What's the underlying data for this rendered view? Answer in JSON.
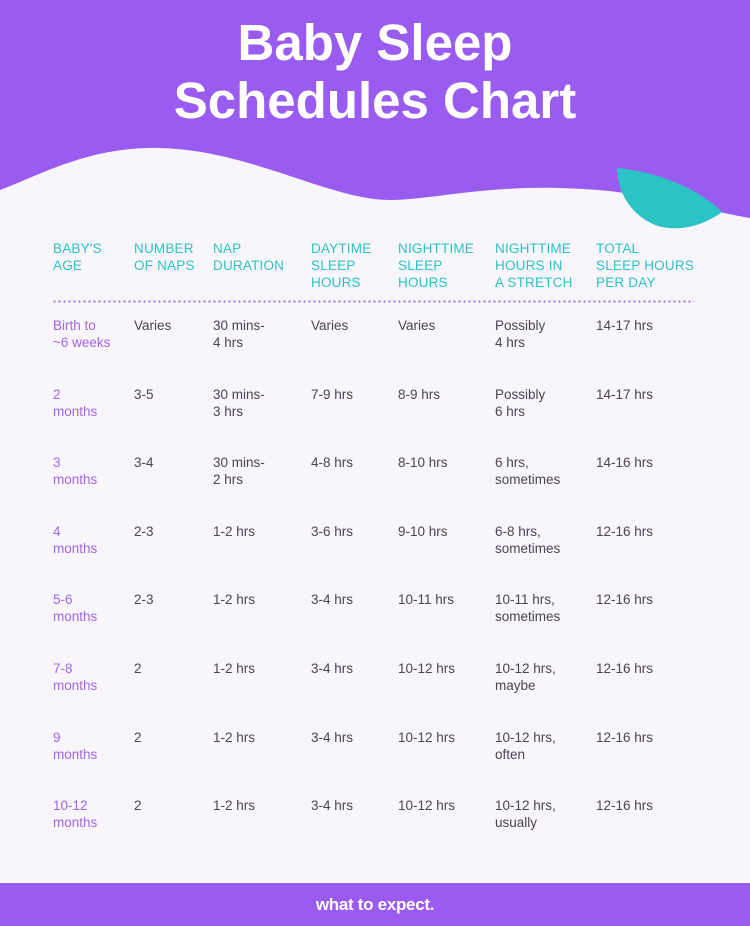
{
  "colors": {
    "purple": "#9A5CF0",
    "teal": "#2BC3C6",
    "background": "#F8F5FB",
    "age_text": "#A266E6",
    "body_text": "#4A4453"
  },
  "header": {
    "title_line1": "Baby Sleep",
    "title_line2": "Schedules Chart"
  },
  "table": {
    "columns": [
      "BABY'S\nAGE",
      "NUMBER\nOF NAPS",
      "NAP\nDURATION",
      "DAYTIME\nSLEEP\nHOURS",
      "NIGHTTIME\nSLEEP\nHOURS",
      "NIGHTTIME\nHOURS IN\nA STRETCH",
      "TOTAL\nSLEEP HOURS\nPER DAY"
    ],
    "rows": [
      [
        "Birth to\n~6 weeks",
        "Varies",
        "30 mins-\n4 hrs",
        "Varies",
        "Varies",
        "Possibly\n4 hrs",
        "14-17 hrs"
      ],
      [
        "2\nmonths",
        "3-5",
        "30 mins-\n3 hrs",
        "7-9 hrs",
        "8-9 hrs",
        "Possibly\n6 hrs",
        "14-17 hrs"
      ],
      [
        "3\nmonths",
        "3-4",
        "30 mins-\n2 hrs",
        "4-8 hrs",
        "8-10 hrs",
        "6 hrs,\nsometimes",
        "14-16 hrs"
      ],
      [
        "4\nmonths",
        "2-3",
        "1-2 hrs",
        "3-6 hrs",
        "9-10 hrs",
        "6-8 hrs,\nsometimes",
        "12-16 hrs"
      ],
      [
        "5-6\nmonths",
        "2-3",
        "1-2 hrs",
        "3-4 hrs",
        "10-11 hrs",
        "10-11 hrs,\nsometimes",
        "12-16 hrs"
      ],
      [
        "7-8\nmonths",
        "2",
        "1-2 hrs",
        "3-4 hrs",
        "10-12 hrs",
        "10-12 hrs,\nmaybe",
        "12-16 hrs"
      ],
      [
        "9\nmonths",
        "2",
        "1-2 hrs",
        "3-4 hrs",
        "10-12 hrs",
        "10-12 hrs,\noften",
        "12-16 hrs"
      ],
      [
        "10-12\nmonths",
        "2",
        "1-2 hrs",
        "3-4 hrs",
        "10-12 hrs",
        "10-12 hrs,\nusually",
        "12-16 hrs"
      ]
    ]
  },
  "footer": {
    "logo_text": "what to expect."
  }
}
